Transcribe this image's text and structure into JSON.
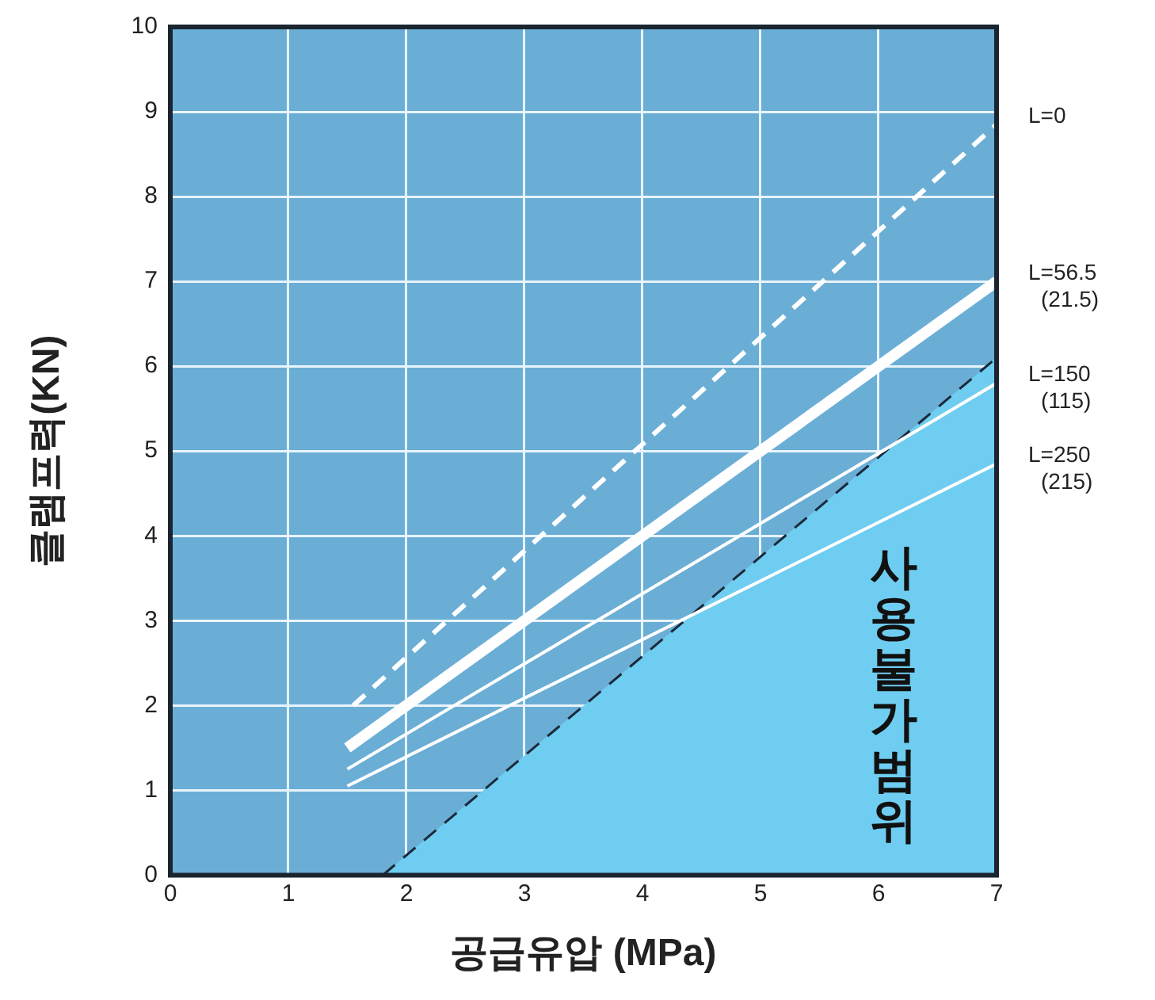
{
  "chart_data": {
    "type": "line",
    "xlabel": "공급유압 (MPa)",
    "ylabel": "클램프력(KN)",
    "xlim": [
      0,
      7
    ],
    "xticks": [
      0,
      1,
      2,
      3,
      4,
      5,
      6,
      7
    ],
    "ylim": [
      0,
      10
    ],
    "yticks": [
      0,
      1,
      2,
      3,
      4,
      5,
      6,
      7,
      8,
      9,
      10
    ],
    "grid": true,
    "legend": false,
    "marker": "none",
    "series": [
      {
        "name": "L=0",
        "color": "#ffffff",
        "line_style": "dashed",
        "x": [
          1.55,
          7
        ],
        "values": [
          2.0,
          8.85
        ]
      },
      {
        "name": "L=56.5 (21.5)",
        "color": "#ffffff",
        "line_style": "solid",
        "x": [
          1.5,
          7
        ],
        "values": [
          1.5,
          7.0
        ]
      },
      {
        "name": "L=150 (115)",
        "color": "#ffffff",
        "line_style": "solid",
        "x": [
          1.5,
          7
        ],
        "values": [
          1.25,
          5.8
        ]
      },
      {
        "name": "L=250 (215)",
        "color": "#ffffff",
        "line_style": "solid",
        "x": [
          1.5,
          7
        ],
        "values": [
          1.05,
          4.85
        ]
      },
      {
        "type": "area",
        "color": "#6ecdf0",
        "line_style": "dashed",
        "x": [
          1.8,
          7
        ],
        "values": [
          0,
          6.1
        ]
      }
    ],
    "annotations": [
      "사용불가범위"
    ]
  }
}
